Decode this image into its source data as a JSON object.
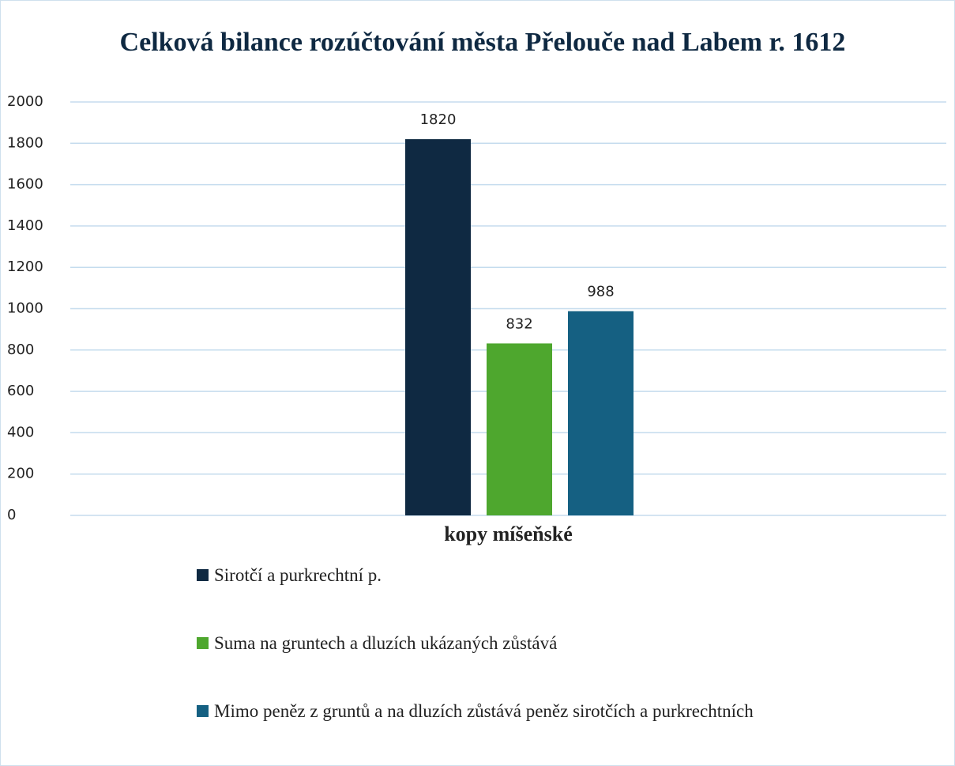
{
  "chart_data": {
    "type": "bar",
    "title": "Celková bilance rozúčtování města Přelouče nad Labem r. 1612",
    "categories": [
      "kopy míšeňské"
    ],
    "series": [
      {
        "name": "Sirotčí a purkrechtní p.",
        "color": "#0f2942",
        "values": [
          1820
        ]
      },
      {
        "name": "Suma na gruntech a dluzích ukázaných zůstává",
        "color": "#4ea72e",
        "values": [
          832
        ]
      },
      {
        "name": "Mimo peněz z gruntů a na dluzích zůstává peněz sirotčích a purkrechtních",
        "color": "#156082",
        "values": [
          988
        ]
      }
    ],
    "ylim": [
      0,
      2000
    ],
    "yticks": [
      0,
      200,
      400,
      600,
      800,
      1000,
      1200,
      1400,
      1600,
      1800,
      2000
    ],
    "grid": true,
    "legend": "bottom"
  }
}
